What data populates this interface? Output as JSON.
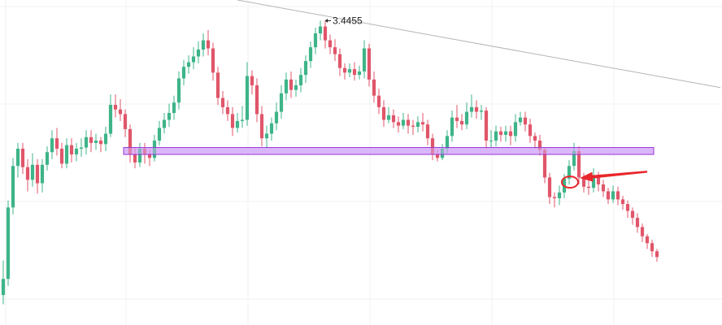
{
  "chart_data": {
    "type": "candlestick",
    "grid": true,
    "ylim": [
      3.1815,
      3.4635
    ],
    "colors": {
      "up": "#3eb489",
      "down": "#e0566a",
      "grid": "#f0f0f0",
      "zone_fill": "#dab6fb",
      "zone_stroke": "#9a36d6",
      "trendline": "#b5b5b5",
      "annotation": "#e8262b"
    },
    "peak": {
      "index": 65,
      "price": 3.4455,
      "label": "3.4455"
    },
    "support_zone": {
      "start_index": 25,
      "end_index": 133,
      "low": 3.3295,
      "high": 3.3355
    },
    "trendline": {
      "start_index": 48,
      "start_price": 3.4635,
      "end_index": 147,
      "end_price": 3.3875
    },
    "annotation": {
      "index": 116,
      "price": 3.3055,
      "arrow_from_index": 132,
      "arrow_from_price": 3.3145
    },
    "candles": [
      [
        3.2075,
        3.2215,
        3.2375,
        3.1995
      ],
      [
        3.2215,
        3.2835,
        3.2895,
        3.2155
      ],
      [
        3.2835,
        3.3195,
        3.3265,
        3.2775
      ],
      [
        3.3195,
        3.3345,
        3.3395,
        3.3095
      ],
      [
        3.3345,
        3.3185,
        3.3395,
        3.3125
      ],
      [
        3.3185,
        3.3075,
        3.3255,
        3.2975
      ],
      [
        3.3075,
        3.3205,
        3.3305,
        3.3015
      ],
      [
        3.3205,
        3.3045,
        3.3255,
        3.2955
      ],
      [
        3.3045,
        3.3205,
        3.3255,
        3.2965
      ],
      [
        3.3205,
        3.3315,
        3.3365,
        3.3155
      ],
      [
        3.3315,
        3.3435,
        3.3505,
        3.3255
      ],
      [
        3.3435,
        3.3345,
        3.3525,
        3.3285
      ],
      [
        3.3345,
        3.3215,
        3.3395,
        3.3175
      ],
      [
        3.3215,
        3.3375,
        3.3435,
        3.3175
      ],
      [
        3.3375,
        3.3295,
        3.3435,
        3.3225
      ],
      [
        3.3295,
        3.3345,
        3.3395,
        3.3235
      ],
      [
        3.3345,
        3.3355,
        3.3435,
        3.3275
      ],
      [
        3.3355,
        3.3445,
        3.3505,
        3.3295
      ],
      [
        3.3445,
        3.3395,
        3.3505,
        3.3315
      ],
      [
        3.3395,
        3.3415,
        3.3475,
        3.3335
      ],
      [
        3.3415,
        3.3385,
        3.3445,
        3.3315
      ],
      [
        3.3385,
        3.3475,
        3.3535,
        3.3325
      ],
      [
        3.3475,
        3.3725,
        3.3815,
        3.3445
      ],
      [
        3.3725,
        3.3685,
        3.3815,
        3.3615
      ],
      [
        3.3685,
        3.3645,
        3.3775,
        3.3585
      ],
      [
        3.3645,
        3.3515,
        3.3685,
        3.3445
      ],
      [
        3.3515,
        3.3295,
        3.3555,
        3.3225
      ],
      [
        3.3295,
        3.3225,
        3.3355,
        3.3175
      ],
      [
        3.3225,
        3.3345,
        3.3395,
        3.3185
      ],
      [
        3.3345,
        3.3295,
        3.3395,
        3.3215
      ],
      [
        3.3295,
        3.3265,
        3.3335,
        3.3195
      ],
      [
        3.3265,
        3.3415,
        3.3465,
        3.3235
      ],
      [
        3.3415,
        3.3525,
        3.3585,
        3.3375
      ],
      [
        3.3525,
        3.3595,
        3.3655,
        3.3475
      ],
      [
        3.3595,
        3.3655,
        3.3735,
        3.3535
      ],
      [
        3.3655,
        3.3745,
        3.3805,
        3.3595
      ],
      [
        3.3745,
        3.3955,
        3.4015,
        3.3685
      ],
      [
        3.3955,
        3.4055,
        3.4115,
        3.3895
      ],
      [
        3.4055,
        3.4095,
        3.4155,
        3.3995
      ],
      [
        3.4095,
        3.4145,
        3.4225,
        3.4035
      ],
      [
        3.4145,
        3.4205,
        3.4275,
        3.4085
      ],
      [
        3.4205,
        3.4285,
        3.4345,
        3.4145
      ],
      [
        3.4285,
        3.4215,
        3.4375,
        3.4155
      ],
      [
        3.4215,
        3.4005,
        3.4265,
        3.3935
      ],
      [
        3.4005,
        3.3785,
        3.4055,
        3.3725
      ],
      [
        3.3785,
        3.3705,
        3.3845,
        3.3645
      ],
      [
        3.3705,
        3.3645,
        3.3765,
        3.3585
      ],
      [
        3.3645,
        3.3525,
        3.3705,
        3.3455
      ],
      [
        3.3525,
        3.3585,
        3.3655,
        3.3485
      ],
      [
        3.3585,
        3.3595,
        3.3715,
        3.3525
      ],
      [
        3.3595,
        3.3975,
        3.4095,
        3.3545
      ],
      [
        3.3975,
        3.3895,
        3.4025,
        3.3815
      ],
      [
        3.3895,
        3.3645,
        3.3955,
        3.3575
      ],
      [
        3.3645,
        3.3435,
        3.3715,
        3.3365
      ],
      [
        3.3435,
        3.3475,
        3.3545,
        3.3355
      ],
      [
        3.3475,
        3.3565,
        3.3615,
        3.3415
      ],
      [
        3.3565,
        3.3665,
        3.3745,
        3.3505
      ],
      [
        3.3665,
        3.3825,
        3.3895,
        3.3605
      ],
      [
        3.3825,
        3.3945,
        3.4005,
        3.3765
      ],
      [
        3.3945,
        3.3855,
        3.4015,
        3.3785
      ],
      [
        3.3855,
        3.3895,
        3.3945,
        3.3795
      ],
      [
        3.3895,
        3.3985,
        3.4045,
        3.3835
      ],
      [
        3.3985,
        3.4105,
        3.4155,
        3.3915
      ],
      [
        3.4105,
        3.4225,
        3.4275,
        3.4045
      ],
      [
        3.4225,
        3.4345,
        3.4395,
        3.4165
      ],
      [
        3.4345,
        3.4405,
        3.4455,
        3.4285
      ],
      [
        3.4405,
        3.4285,
        3.4455,
        3.4215
      ],
      [
        3.4285,
        3.4225,
        3.4335,
        3.4165
      ],
      [
        3.4225,
        3.4165,
        3.4295,
        3.4105
      ],
      [
        3.4165,
        3.4045,
        3.4215,
        3.3975
      ],
      [
        3.4045,
        3.4005,
        3.4085,
        3.3945
      ],
      [
        3.4005,
        3.4035,
        3.4085,
        3.3965
      ],
      [
        3.4035,
        3.3985,
        3.4095,
        3.3935
      ],
      [
        3.3985,
        3.4015,
        3.4065,
        3.3945
      ],
      [
        3.4015,
        3.4215,
        3.4285,
        3.3955
      ],
      [
        3.4215,
        3.3945,
        3.4255,
        3.3885
      ],
      [
        3.3945,
        3.3805,
        3.4015,
        3.3745
      ],
      [
        3.3805,
        3.3705,
        3.3865,
        3.3645
      ],
      [
        3.3705,
        3.3595,
        3.3765,
        3.3535
      ],
      [
        3.3595,
        3.3635,
        3.3705,
        3.3565
      ],
      [
        3.3635,
        3.3575,
        3.3685,
        3.3525
      ],
      [
        3.3575,
        3.3545,
        3.3625,
        3.3485
      ],
      [
        3.3545,
        3.3595,
        3.3655,
        3.3515
      ],
      [
        3.3595,
        3.3545,
        3.3645,
        3.3475
      ],
      [
        3.3545,
        3.3535,
        3.3595,
        3.3465
      ],
      [
        3.3535,
        3.3575,
        3.3625,
        3.3485
      ],
      [
        3.3575,
        3.3555,
        3.3655,
        3.3495
      ],
      [
        3.3555,
        3.3435,
        3.3595,
        3.3375
      ],
      [
        3.3435,
        3.3295,
        3.3475,
        3.3245
      ],
      [
        3.3295,
        3.3265,
        3.3335,
        3.3235
      ],
      [
        3.3265,
        3.3345,
        3.3385,
        3.3245
      ],
      [
        3.3345,
        3.3455,
        3.3505,
        3.3305
      ],
      [
        3.3455,
        3.3615,
        3.3675,
        3.3405
      ],
      [
        3.3615,
        3.3585,
        3.3725,
        3.3525
      ],
      [
        3.3585,
        3.3555,
        3.3645,
        3.3505
      ],
      [
        3.3555,
        3.3665,
        3.3745,
        3.3515
      ],
      [
        3.3665,
        3.3705,
        3.3815,
        3.3615
      ],
      [
        3.3705,
        3.3665,
        3.3765,
        3.3605
      ],
      [
        3.3665,
        3.3675,
        3.3725,
        3.3595
      ],
      [
        3.3675,
        3.3415,
        3.3705,
        3.3345
      ],
      [
        3.3415,
        3.3415,
        3.3505,
        3.3355
      ],
      [
        3.3415,
        3.3495,
        3.3545,
        3.3365
      ],
      [
        3.3495,
        3.3465,
        3.3535,
        3.3405
      ],
      [
        3.3465,
        3.3495,
        3.3545,
        3.3405
      ],
      [
        3.3495,
        3.3455,
        3.3545,
        3.3375
      ],
      [
        3.3455,
        3.3575,
        3.3645,
        3.3405
      ],
      [
        3.3575,
        3.3615,
        3.3665,
        3.3545
      ],
      [
        3.3615,
        3.3555,
        3.3665,
        3.3495
      ],
      [
        3.3555,
        3.3455,
        3.3605,
        3.3395
      ],
      [
        3.3455,
        3.3415,
        3.3485,
        3.3345
      ],
      [
        3.3415,
        3.3335,
        3.3465,
        3.3285
      ],
      [
        3.3335,
        3.3095,
        3.3355,
        3.3045
      ],
      [
        3.3095,
        3.2925,
        3.3135,
        3.2865
      ],
      [
        3.2925,
        3.2915,
        3.2965,
        3.2835
      ],
      [
        3.2915,
        3.2965,
        3.3025,
        3.2855
      ],
      [
        3.2965,
        3.3085,
        3.3125,
        3.2915
      ],
      [
        3.3085,
        3.3195,
        3.3245,
        3.3035
      ],
      [
        3.3195,
        3.3325,
        3.3395,
        3.3155
      ],
      [
        3.3325,
        3.3095,
        3.3365,
        3.3035
      ],
      [
        3.3095,
        3.3015,
        3.3135,
        3.2965
      ],
      [
        3.3015,
        3.3005,
        3.3075,
        3.2945
      ],
      [
        3.3005,
        3.3115,
        3.3175,
        3.2965
      ],
      [
        3.3115,
        3.3035,
        3.3145,
        3.2975
      ],
      [
        3.3035,
        3.2975,
        3.3075,
        3.2925
      ],
      [
        3.2975,
        3.2905,
        3.3005,
        3.2865
      ],
      [
        3.2905,
        3.2975,
        3.3025,
        3.2875
      ],
      [
        3.2975,
        3.2905,
        3.3015,
        3.2855
      ],
      [
        3.2905,
        3.2865,
        3.2935,
        3.2815
      ],
      [
        3.2865,
        3.2805,
        3.2895,
        3.2745
      ],
      [
        3.2805,
        3.2745,
        3.2835,
        3.2685
      ],
      [
        3.2745,
        3.2665,
        3.2785,
        3.2615
      ],
      [
        3.2665,
        3.2585,
        3.2695,
        3.2535
      ],
      [
        3.2585,
        3.2525,
        3.2605,
        3.2475
      ],
      [
        3.2525,
        3.2455,
        3.2555,
        3.2405
      ],
      [
        3.2455,
        3.2405,
        3.2475,
        3.2365
      ]
    ]
  }
}
